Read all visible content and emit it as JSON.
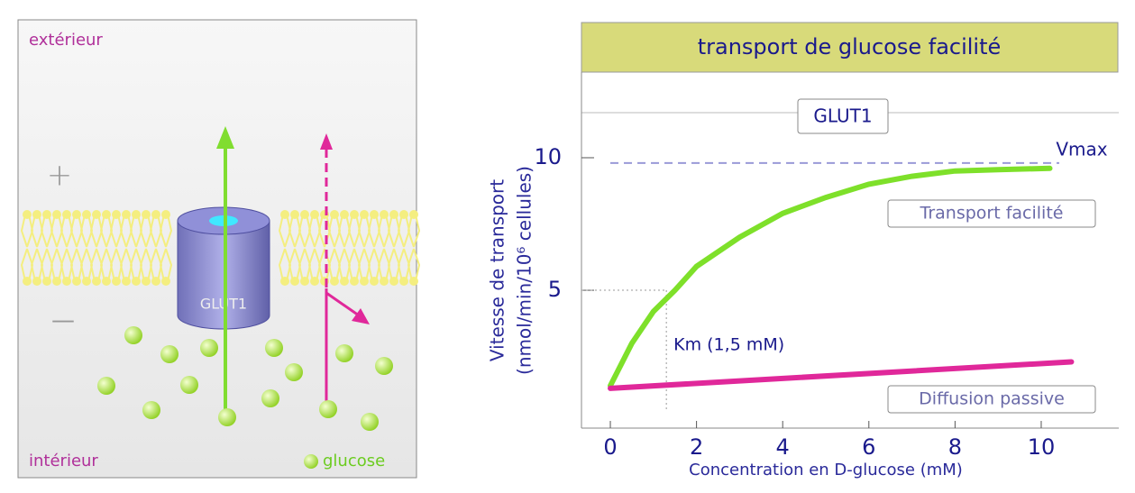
{
  "diagram": {
    "exterior": "extérieur",
    "interior": "intérieur",
    "plus": "+",
    "minus": "—",
    "protein": "GLUT1",
    "glucose": "glucose"
  },
  "chart_data": {
    "type": "line",
    "title": "transport de glucose facilité",
    "subtitle": "GLUT1",
    "y_label": [
      "Vitesse de transport",
      "(nmol/min/10⁶ cellules)"
    ],
    "x_label": "Concentration en D-glucose (mM)",
    "xlim": [
      -0.67,
      11.8
    ],
    "ylim": [
      -0.2,
      11.7
    ],
    "xticks": [
      0,
      2,
      4,
      6,
      8,
      10
    ],
    "yticks": [
      5,
      10
    ],
    "series": [
      {
        "name": "Transport facilité",
        "color": "#7ee02a",
        "x": [
          0,
          0.5,
          1,
          1.5,
          2,
          3,
          4,
          5,
          6,
          7,
          8,
          9,
          10.2
        ],
        "values": [
          1.4,
          3.0,
          4.2,
          5.0,
          5.9,
          7.0,
          7.9,
          8.5,
          9.0,
          9.3,
          9.5,
          9.55,
          9.6
        ]
      },
      {
        "name": "Diffusion passive",
        "color": "#e0289a",
        "x": [
          0,
          10.7
        ],
        "values": [
          1.3,
          2.3
        ]
      }
    ],
    "vmax": {
      "label": "Vmax",
      "value": 9.8
    },
    "km": {
      "label": "Km (1,5 mM)",
      "x": 1.3,
      "y": 5
    }
  }
}
